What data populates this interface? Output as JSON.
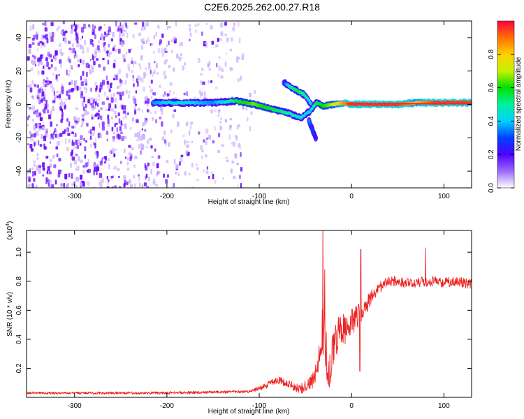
{
  "title": "C2E6.2025.262.00.27.R18",
  "colors": {
    "snr_line": "#ee2222",
    "axis": "#000000",
    "noise_violet": "#6a0dff",
    "noise_light": "#cfb6ff"
  },
  "chart_data": [
    {
      "type": "heatmap",
      "name": "spectrogram",
      "xlabel": "Height of straight line (km)",
      "ylabel": "Frequency (Hz)",
      "xlim": [
        -352,
        130
      ],
      "ylim": [
        -50,
        50
      ],
      "xticks": [
        -300,
        -200,
        -100,
        0,
        100
      ],
      "yticks": [
        -40,
        -20,
        0,
        20,
        40
      ],
      "colorbar": {
        "label": "Normalized spectral amplitude",
        "range": [
          0.0,
          1.0
        ],
        "ticks": [
          0.0,
          0.2,
          0.4,
          0.6,
          0.8
        ],
        "colormap": "rainbow (white-violet-blue-cyan-green-yellow-orange-red)"
      },
      "features": {
        "noise_dense_region_km": [
          -352,
          -250
        ],
        "noise_fading_region_km": [
          -250,
          -120
        ],
        "carrier_trace": {
          "x": [
            -215,
            -190,
            -170,
            -150,
            -125,
            -105,
            -85,
            -70,
            -55,
            -45,
            -38,
            -30,
            -20,
            -10,
            0,
            20,
            50,
            70,
            90,
            110,
            130
          ],
          "freq": [
            1,
            1,
            1,
            1,
            2,
            0,
            -3,
            -5,
            -8,
            -4,
            1,
            -1,
            0,
            1,
            0,
            0,
            0,
            1,
            1,
            1,
            1
          ],
          "amplitude": [
            0.35,
            0.45,
            0.4,
            0.35,
            0.55,
            0.65,
            0.55,
            0.5,
            0.45,
            0.4,
            0.55,
            0.6,
            0.7,
            0.85,
            0.95,
            0.95,
            0.95,
            0.8,
            0.95,
            0.95,
            0.95
          ]
        },
        "upper_branch": {
          "x": [
            -73,
            -65,
            -58,
            -52,
            -47,
            -44
          ],
          "freq": [
            13,
            10,
            8,
            6,
            3,
            0
          ],
          "amplitude": [
            0.3,
            0.5,
            0.55,
            0.5,
            0.45,
            0.4
          ]
        },
        "lower_branch": {
          "x": [
            -46,
            -44,
            -42,
            -40,
            -38
          ],
          "freq": [
            -10,
            -13,
            -16,
            -19,
            -21
          ],
          "amplitude": [
            0.35,
            0.3,
            0.3,
            0.25,
            0.2
          ]
        }
      }
    },
    {
      "type": "line",
      "name": "snr",
      "xlabel": "Height of straight line (km)",
      "ylabel": "SNR (10 * v/v)",
      "yscale_label": "(x10",
      "yscale_exponent": "4",
      "xlim": [
        -352,
        130
      ],
      "ylim": [
        0,
        1.15
      ],
      "xticks": [
        -300,
        -200,
        -100,
        0,
        100
      ],
      "yticks": [
        0.2,
        0.4,
        0.6,
        0.8,
        1.0
      ],
      "envelope": {
        "x": [
          -352,
          -200,
          -150,
          -110,
          -100,
          -90,
          -80,
          -70,
          -62,
          -55,
          -48,
          -42,
          -38,
          -34,
          -31,
          -28,
          -25,
          -20,
          -15,
          -10,
          -5,
          0,
          5,
          10,
          15,
          20,
          25,
          30,
          35,
          40,
          50,
          60,
          70,
          80,
          90,
          100,
          110,
          120,
          130
        ],
        "y": [
          0.03,
          0.03,
          0.035,
          0.04,
          0.06,
          0.09,
          0.12,
          0.1,
          0.07,
          0.06,
          0.08,
          0.12,
          0.18,
          0.3,
          0.55,
          0.32,
          0.15,
          0.3,
          0.42,
          0.45,
          0.5,
          0.52,
          0.55,
          0.58,
          0.62,
          0.68,
          0.72,
          0.75,
          0.78,
          0.8,
          0.8,
          0.79,
          0.79,
          0.8,
          0.8,
          0.79,
          0.8,
          0.79,
          0.78
        ]
      },
      "noise_amplitude": {
        "x": [
          -352,
          -110,
          -100,
          -60,
          -45,
          -35,
          -30,
          -25,
          -20,
          -10,
          0,
          10,
          20,
          30,
          40,
          130
        ],
        "y": [
          0.008,
          0.01,
          0.02,
          0.03,
          0.05,
          0.1,
          0.25,
          0.12,
          0.15,
          0.12,
          0.1,
          0.07,
          0.05,
          0.04,
          0.035,
          0.035
        ]
      },
      "spikes": [
        {
          "x": -31,
          "y": 1.15
        },
        {
          "x": -29,
          "y": 0.88
        },
        {
          "x": 10,
          "y": 1.02
        },
        {
          "x": 80,
          "y": 1.03
        },
        {
          "x": 9,
          "y": 0.18
        }
      ]
    }
  ]
}
